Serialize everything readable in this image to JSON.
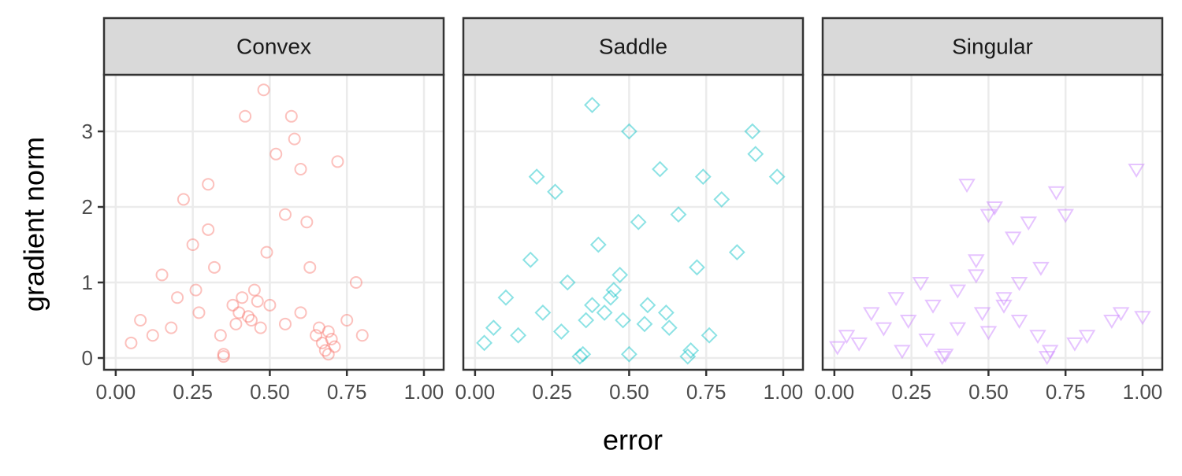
{
  "chart_data": {
    "type": "scatter",
    "x_label": "error",
    "y_label": "gradient norm",
    "xlim": [
      -0.038,
      1.064
    ],
    "ylim": [
      -0.156,
      3.75
    ],
    "xticks": [
      {
        "value": 0,
        "label": "0.00"
      },
      {
        "value": 0.25,
        "label": "0.25"
      },
      {
        "value": 0.5,
        "label": "0.50"
      },
      {
        "value": 0.75,
        "label": "0.75"
      },
      {
        "value": 1,
        "label": "1.00"
      }
    ],
    "yticks": [
      0,
      1,
      2,
      3
    ],
    "grid": true,
    "facets": [
      {
        "title": "Convex",
        "color": "#F8766D",
        "marker": "circle",
        "x": [
          0.05,
          0.08,
          0.12,
          0.15,
          0.18,
          0.2,
          0.22,
          0.25,
          0.27,
          0.3,
          0.32,
          0.35,
          0.35,
          0.34,
          0.38,
          0.4,
          0.42,
          0.44,
          0.45,
          0.47,
          0.48,
          0.5,
          0.52,
          0.55,
          0.57,
          0.6,
          0.62,
          0.65,
          0.67,
          0.68,
          0.69,
          0.7,
          0.72,
          0.75,
          0.78,
          0.8,
          0.49,
          0.41,
          0.58,
          0.63,
          0.3,
          0.26,
          0.55,
          0.69,
          0.71,
          0.66,
          0.43,
          0.39,
          0.46,
          0.6
        ],
        "y": [
          0.2,
          0.5,
          0.3,
          1.1,
          0.4,
          0.8,
          2.1,
          1.5,
          0.6,
          2.3,
          1.2,
          0.02,
          0.05,
          0.3,
          0.7,
          0.6,
          3.2,
          0.5,
          0.9,
          0.4,
          3.55,
          0.7,
          2.7,
          0.45,
          3.2,
          0.6,
          1.8,
          0.3,
          0.2,
          0.1,
          0.05,
          0.25,
          2.6,
          0.5,
          1.0,
          0.3,
          1.4,
          0.8,
          2.9,
          1.2,
          1.7,
          0.9,
          1.9,
          0.35,
          0.15,
          0.4,
          0.55,
          0.45,
          0.75,
          2.5
        ]
      },
      {
        "title": "Saddle",
        "color": "#00BFC4",
        "marker": "diamond",
        "x": [
          0.03,
          0.06,
          0.1,
          0.14,
          0.18,
          0.22,
          0.26,
          0.3,
          0.34,
          0.35,
          0.38,
          0.4,
          0.42,
          0.45,
          0.48,
          0.5,
          0.5,
          0.53,
          0.56,
          0.6,
          0.63,
          0.66,
          0.69,
          0.7,
          0.72,
          0.74,
          0.76,
          0.8,
          0.85,
          0.9,
          0.91,
          0.98,
          0.38,
          0.44,
          0.55,
          0.62,
          0.28,
          0.2,
          0.47,
          0.36
        ],
        "y": [
          0.2,
          0.4,
          0.8,
          0.3,
          1.3,
          0.6,
          2.2,
          1.0,
          0.02,
          0.05,
          0.7,
          1.5,
          0.6,
          0.9,
          0.5,
          3.0,
          0.05,
          1.8,
          0.7,
          2.5,
          0.4,
          1.9,
          0.02,
          0.1,
          1.2,
          2.4,
          0.3,
          2.1,
          1.4,
          3.0,
          2.7,
          2.4,
          3.35,
          0.8,
          0.45,
          0.6,
          0.35,
          2.4,
          1.1,
          0.5
        ]
      },
      {
        "title": "Singular",
        "color": "#C77CFF",
        "marker": "triangle-down",
        "x": [
          0.01,
          0.04,
          0.08,
          0.12,
          0.16,
          0.2,
          0.24,
          0.28,
          0.32,
          0.35,
          0.36,
          0.4,
          0.43,
          0.46,
          0.48,
          0.5,
          0.52,
          0.55,
          0.58,
          0.6,
          0.63,
          0.66,
          0.69,
          0.7,
          0.72,
          0.75,
          0.78,
          0.82,
          0.9,
          0.93,
          0.98,
          1.0,
          0.4,
          0.46,
          0.55,
          0.3,
          0.6,
          0.22,
          0.5,
          0.67
        ],
        "y": [
          0.15,
          0.3,
          0.2,
          0.6,
          0.4,
          0.8,
          0.5,
          1.0,
          0.7,
          0.02,
          0.05,
          0.9,
          2.3,
          1.3,
          0.6,
          1.9,
          2.0,
          0.8,
          1.6,
          0.5,
          1.8,
          0.3,
          0.02,
          0.1,
          2.2,
          1.9,
          0.2,
          0.3,
          0.5,
          0.6,
          2.5,
          0.55,
          0.4,
          1.1,
          0.7,
          0.25,
          1.0,
          0.1,
          0.35,
          1.2
        ]
      }
    ]
  }
}
